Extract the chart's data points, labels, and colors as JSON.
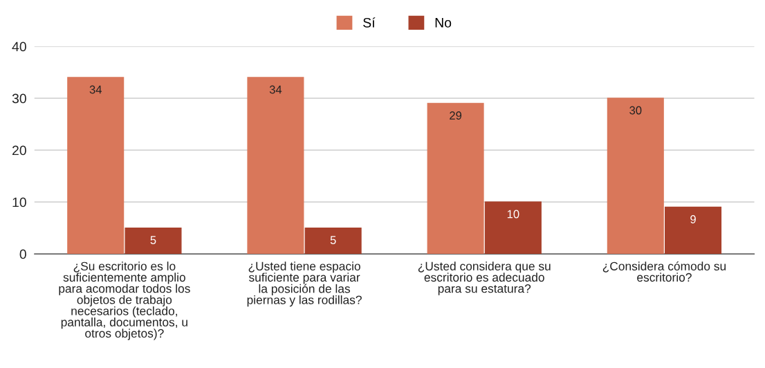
{
  "chart_data": {
    "type": "bar",
    "categories": [
      "¿Su escritorio es lo suficientemente amplio para acomodar todos los objetos de trabajo necesarios (teclado, pantalla, documentos, u otros objetos)?",
      "¿Usted tiene espacio suficiente para variar la posición de las piernas y las rodillas?",
      "¿Usted considera que su escritorio es adecuado para su estatura?",
      "¿Considera cómodo su escritorio?"
    ],
    "series": [
      {
        "name": "Sí",
        "color": "#d9775a",
        "values": [
          34,
          34,
          29,
          30
        ]
      },
      {
        "name": "No",
        "color": "#a8402b",
        "values": [
          5,
          5,
          10,
          9
        ]
      }
    ],
    "ylim": [
      0,
      40
    ],
    "yticks": [
      0,
      10,
      20,
      30,
      40
    ],
    "grid": "y",
    "legend": "top",
    "data_labels": true
  }
}
